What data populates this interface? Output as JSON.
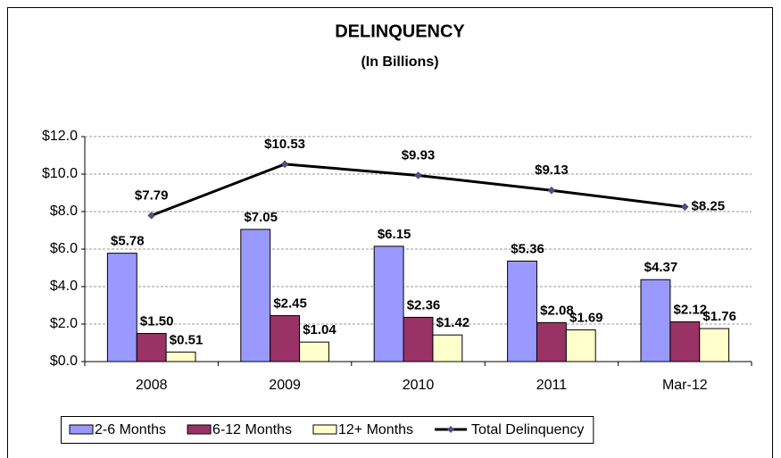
{
  "chart_data": {
    "type": "bar",
    "title": "DELINQUENCY",
    "subtitle": "(In Billions)",
    "categories": [
      "2008",
      "2009",
      "2010",
      "2011",
      "Mar-12"
    ],
    "series": [
      {
        "name": "2-6 Months",
        "color": "#9999ff",
        "values": [
          5.78,
          7.05,
          6.15,
          5.36,
          4.37
        ],
        "value_labels": [
          "$5.78",
          "$7.05",
          "$6.15",
          "$5.36",
          "$4.37"
        ]
      },
      {
        "name": "6-12 Months",
        "color": "#993366",
        "values": [
          1.5,
          2.45,
          2.36,
          2.08,
          2.12
        ],
        "value_labels": [
          "$1.50",
          "$2.45",
          "$2.36",
          "$2.08",
          "$2.12"
        ]
      },
      {
        "name": "12+ Months",
        "color": "#ffffcc",
        "values": [
          0.51,
          1.04,
          1.42,
          1.69,
          1.76
        ],
        "value_labels": [
          "$0.51",
          "$1.04",
          "$1.42",
          "$1.69",
          "$1.76"
        ]
      },
      {
        "name": "Total Delinquency",
        "type": "line",
        "color": "#000000",
        "marker_color": "#5a4a8a",
        "values": [
          7.79,
          10.53,
          9.93,
          9.13,
          8.25
        ],
        "value_labels": [
          "$7.79",
          "$10.53",
          "$9.93",
          "$9.13",
          "$8.25"
        ]
      }
    ],
    "ylim": [
      0,
      12
    ],
    "yticks": [
      {
        "value": 0,
        "label": "$0.0"
      },
      {
        "value": 2,
        "label": "$2.0"
      },
      {
        "value": 4,
        "label": "$4.0"
      },
      {
        "value": 6,
        "label": "$6.0"
      },
      {
        "value": 8,
        "label": "$8.0"
      },
      {
        "value": 10,
        "label": "$10.0"
      },
      {
        "value": 12,
        "label": "$12.0"
      }
    ],
    "grid": true,
    "legend": "bottom"
  }
}
